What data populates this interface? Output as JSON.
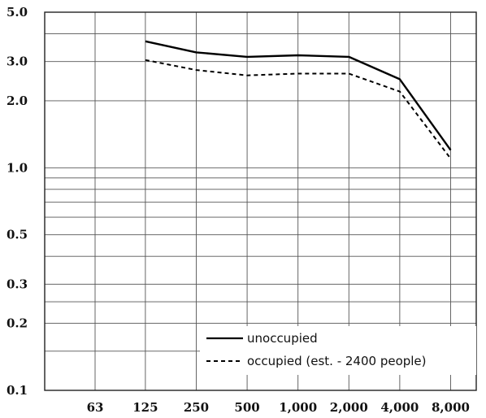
{
  "chart_data": {
    "type": "line",
    "x_scale": "log",
    "y_scale": "log",
    "ylim": [
      0.1,
      5.0
    ],
    "grid": true,
    "legend_placement": "bottom-right",
    "x_tick_labels": [
      "63",
      "125",
      "250",
      "500",
      "1,000",
      "2,000",
      "4,000",
      "8,000"
    ],
    "x_tick_values": [
      63,
      125,
      250,
      500,
      1000,
      2000,
      4000,
      8000
    ],
    "y_tick_labels": [
      "5.0",
      "3.0",
      "2.0",
      "1.0",
      "0.5",
      "0.3",
      "0.2",
      "0.1"
    ],
    "y_tick_values": [
      5.0,
      3.0,
      2.0,
      1.0,
      0.5,
      0.3,
      0.2,
      0.1
    ],
    "y_minor_gridlines": [
      0.15,
      0.25,
      0.4,
      0.6,
      0.7,
      0.8,
      0.9,
      4.0
    ],
    "series": [
      {
        "name": "unoccupied",
        "style": "solid",
        "color": "#000000",
        "x": [
          125,
          250,
          500,
          1000,
          2000,
          4000,
          8000
        ],
        "y": [
          3.7,
          3.3,
          3.15,
          3.2,
          3.15,
          2.5,
          1.2
        ]
      },
      {
        "name": "occupied (est. - 2400 people)",
        "style": "dashed",
        "color": "#000000",
        "x": [
          125,
          250,
          500,
          1000,
          2000,
          4000,
          8000
        ],
        "y": [
          3.05,
          2.75,
          2.6,
          2.65,
          2.65,
          2.2,
          1.1
        ]
      }
    ]
  }
}
